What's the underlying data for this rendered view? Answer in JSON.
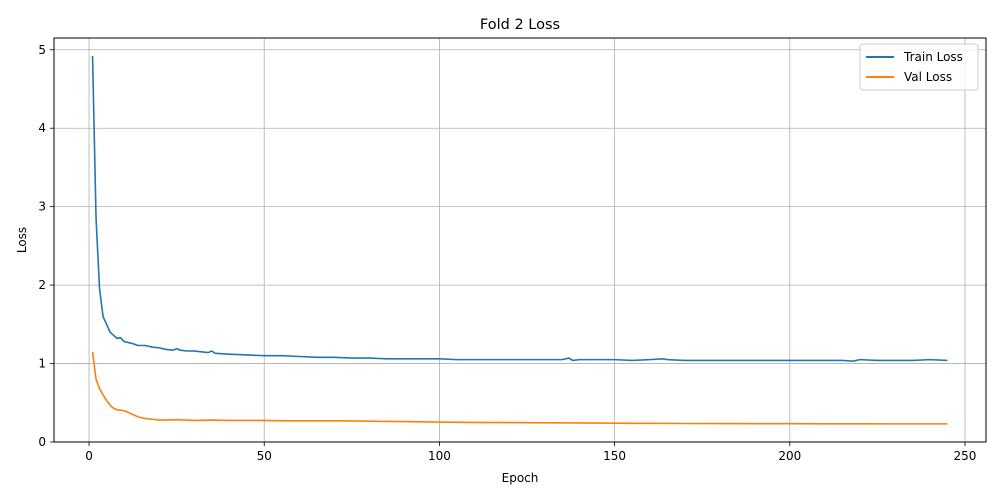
{
  "chart_data": {
    "type": "line",
    "title": "Fold 2 Loss",
    "xlabel": "Epoch",
    "ylabel": "Loss",
    "xlim": [
      -10,
      256
    ],
    "ylim": [
      0,
      5.15
    ],
    "xticks": [
      0,
      50,
      100,
      150,
      200,
      250
    ],
    "yticks": [
      0,
      1,
      2,
      3,
      4,
      5
    ],
    "grid": true,
    "legend_position": "top-right",
    "series": [
      {
        "name": "Train Loss",
        "color": "#1f77b4",
        "points": [
          [
            1,
            4.92
          ],
          [
            2,
            2.85
          ],
          [
            3,
            1.95
          ],
          [
            4,
            1.6
          ],
          [
            5,
            1.5
          ],
          [
            6,
            1.4
          ],
          [
            7,
            1.36
          ],
          [
            8,
            1.32
          ],
          [
            9,
            1.33
          ],
          [
            10,
            1.28
          ],
          [
            12,
            1.26
          ],
          [
            14,
            1.23
          ],
          [
            16,
            1.23
          ],
          [
            18,
            1.21
          ],
          [
            20,
            1.2
          ],
          [
            22,
            1.18
          ],
          [
            24,
            1.17
          ],
          [
            25,
            1.19
          ],
          [
            26,
            1.17
          ],
          [
            28,
            1.16
          ],
          [
            30,
            1.16
          ],
          [
            32,
            1.15
          ],
          [
            34,
            1.14
          ],
          [
            35,
            1.16
          ],
          [
            36,
            1.13
          ],
          [
            40,
            1.12
          ],
          [
            45,
            1.11
          ],
          [
            50,
            1.1
          ],
          [
            55,
            1.1
          ],
          [
            60,
            1.09
          ],
          [
            65,
            1.08
          ],
          [
            70,
            1.08
          ],
          [
            75,
            1.07
          ],
          [
            80,
            1.07
          ],
          [
            85,
            1.06
          ],
          [
            90,
            1.06
          ],
          [
            95,
            1.06
          ],
          [
            100,
            1.06
          ],
          [
            105,
            1.05
          ],
          [
            110,
            1.05
          ],
          [
            115,
            1.05
          ],
          [
            120,
            1.05
          ],
          [
            125,
            1.05
          ],
          [
            130,
            1.05
          ],
          [
            135,
            1.05
          ],
          [
            137,
            1.07
          ],
          [
            138,
            1.04
          ],
          [
            140,
            1.05
          ],
          [
            145,
            1.05
          ],
          [
            150,
            1.05
          ],
          [
            155,
            1.04
          ],
          [
            160,
            1.05
          ],
          [
            164,
            1.06
          ],
          [
            165,
            1.05
          ],
          [
            170,
            1.04
          ],
          [
            175,
            1.04
          ],
          [
            180,
            1.04
          ],
          [
            185,
            1.04
          ],
          [
            190,
            1.04
          ],
          [
            195,
            1.04
          ],
          [
            200,
            1.04
          ],
          [
            205,
            1.04
          ],
          [
            210,
            1.04
          ],
          [
            215,
            1.04
          ],
          [
            218,
            1.03
          ],
          [
            220,
            1.05
          ],
          [
            225,
            1.04
          ],
          [
            230,
            1.04
          ],
          [
            235,
            1.04
          ],
          [
            240,
            1.05
          ],
          [
            245,
            1.04
          ]
        ]
      },
      {
        "name": "Val Loss",
        "color": "#ff7f0e",
        "points": [
          [
            1,
            1.15
          ],
          [
            2,
            0.8
          ],
          [
            3,
            0.68
          ],
          [
            4,
            0.6
          ],
          [
            5,
            0.53
          ],
          [
            6,
            0.47
          ],
          [
            7,
            0.43
          ],
          [
            8,
            0.41
          ],
          [
            10,
            0.4
          ],
          [
            12,
            0.36
          ],
          [
            14,
            0.32
          ],
          [
            16,
            0.3
          ],
          [
            18,
            0.29
          ],
          [
            20,
            0.28
          ],
          [
            22,
            0.28
          ],
          [
            25,
            0.285
          ],
          [
            30,
            0.275
          ],
          [
            35,
            0.28
          ],
          [
            40,
            0.275
          ],
          [
            45,
            0.275
          ],
          [
            50,
            0.275
          ],
          [
            55,
            0.27
          ],
          [
            60,
            0.27
          ],
          [
            65,
            0.27
          ],
          [
            70,
            0.27
          ],
          [
            75,
            0.268
          ],
          [
            80,
            0.265
          ],
          [
            85,
            0.262
          ],
          [
            90,
            0.26
          ],
          [
            95,
            0.257
          ],
          [
            100,
            0.254
          ],
          [
            110,
            0.25
          ],
          [
            120,
            0.248
          ],
          [
            130,
            0.245
          ],
          [
            140,
            0.243
          ],
          [
            150,
            0.24
          ],
          [
            160,
            0.238
          ],
          [
            170,
            0.236
          ],
          [
            180,
            0.235
          ],
          [
            190,
            0.234
          ],
          [
            200,
            0.233
          ],
          [
            210,
            0.232
          ],
          [
            220,
            0.232
          ],
          [
            230,
            0.231
          ],
          [
            240,
            0.231
          ],
          [
            245,
            0.231
          ]
        ]
      }
    ]
  }
}
